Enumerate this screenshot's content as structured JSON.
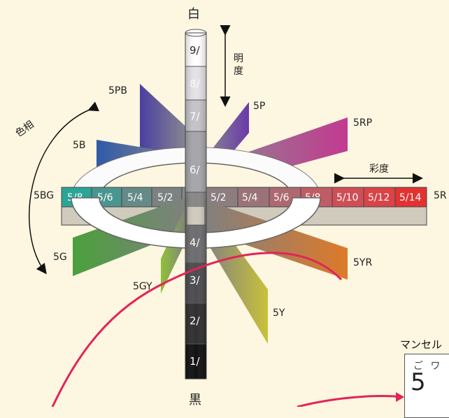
{
  "axis": {
    "top_label": "白",
    "bottom_label": "黒",
    "value_label": [
      "明",
      "度"
    ],
    "hue_label": "色相",
    "chroma_label": "彩度"
  },
  "value_steps": [
    "9/",
    "8/",
    "7/",
    "6/",
    "4/",
    "3/",
    "2/",
    "1/"
  ],
  "hue_labels": {
    "h5PB": "5PB",
    "h5P": "5P",
    "h5RP": "5RP",
    "h5B": "5B",
    "h5BG": "5BG",
    "h5R": "5R",
    "h5G": "5G",
    "h5GY": "5GY",
    "h5Y": "5Y",
    "h5YR": "5YR"
  },
  "left_chroma": [
    "5/8",
    "5/6",
    "5/4",
    "5/2"
  ],
  "right_chroma": [
    "5/2",
    "5/4",
    "5/6",
    "5/8",
    "5/10",
    "5/12",
    "5/14"
  ],
  "inset": {
    "title": "マンセル",
    "small_text": "ご ワ",
    "big_text": "5"
  },
  "colors": {
    "background": "#fdf6e0",
    "arrow_curve": "#e2245a",
    "PB": "#4a3fa0",
    "P": "#6a3aa8",
    "RP": "#c23a90",
    "B": "#2f5aa8",
    "BG": "#2aa598",
    "R": "#e23030",
    "G": "#4aa03c",
    "GY": "#8fc03a",
    "Y": "#c8c23a",
    "YR": "#dd7a2a"
  }
}
